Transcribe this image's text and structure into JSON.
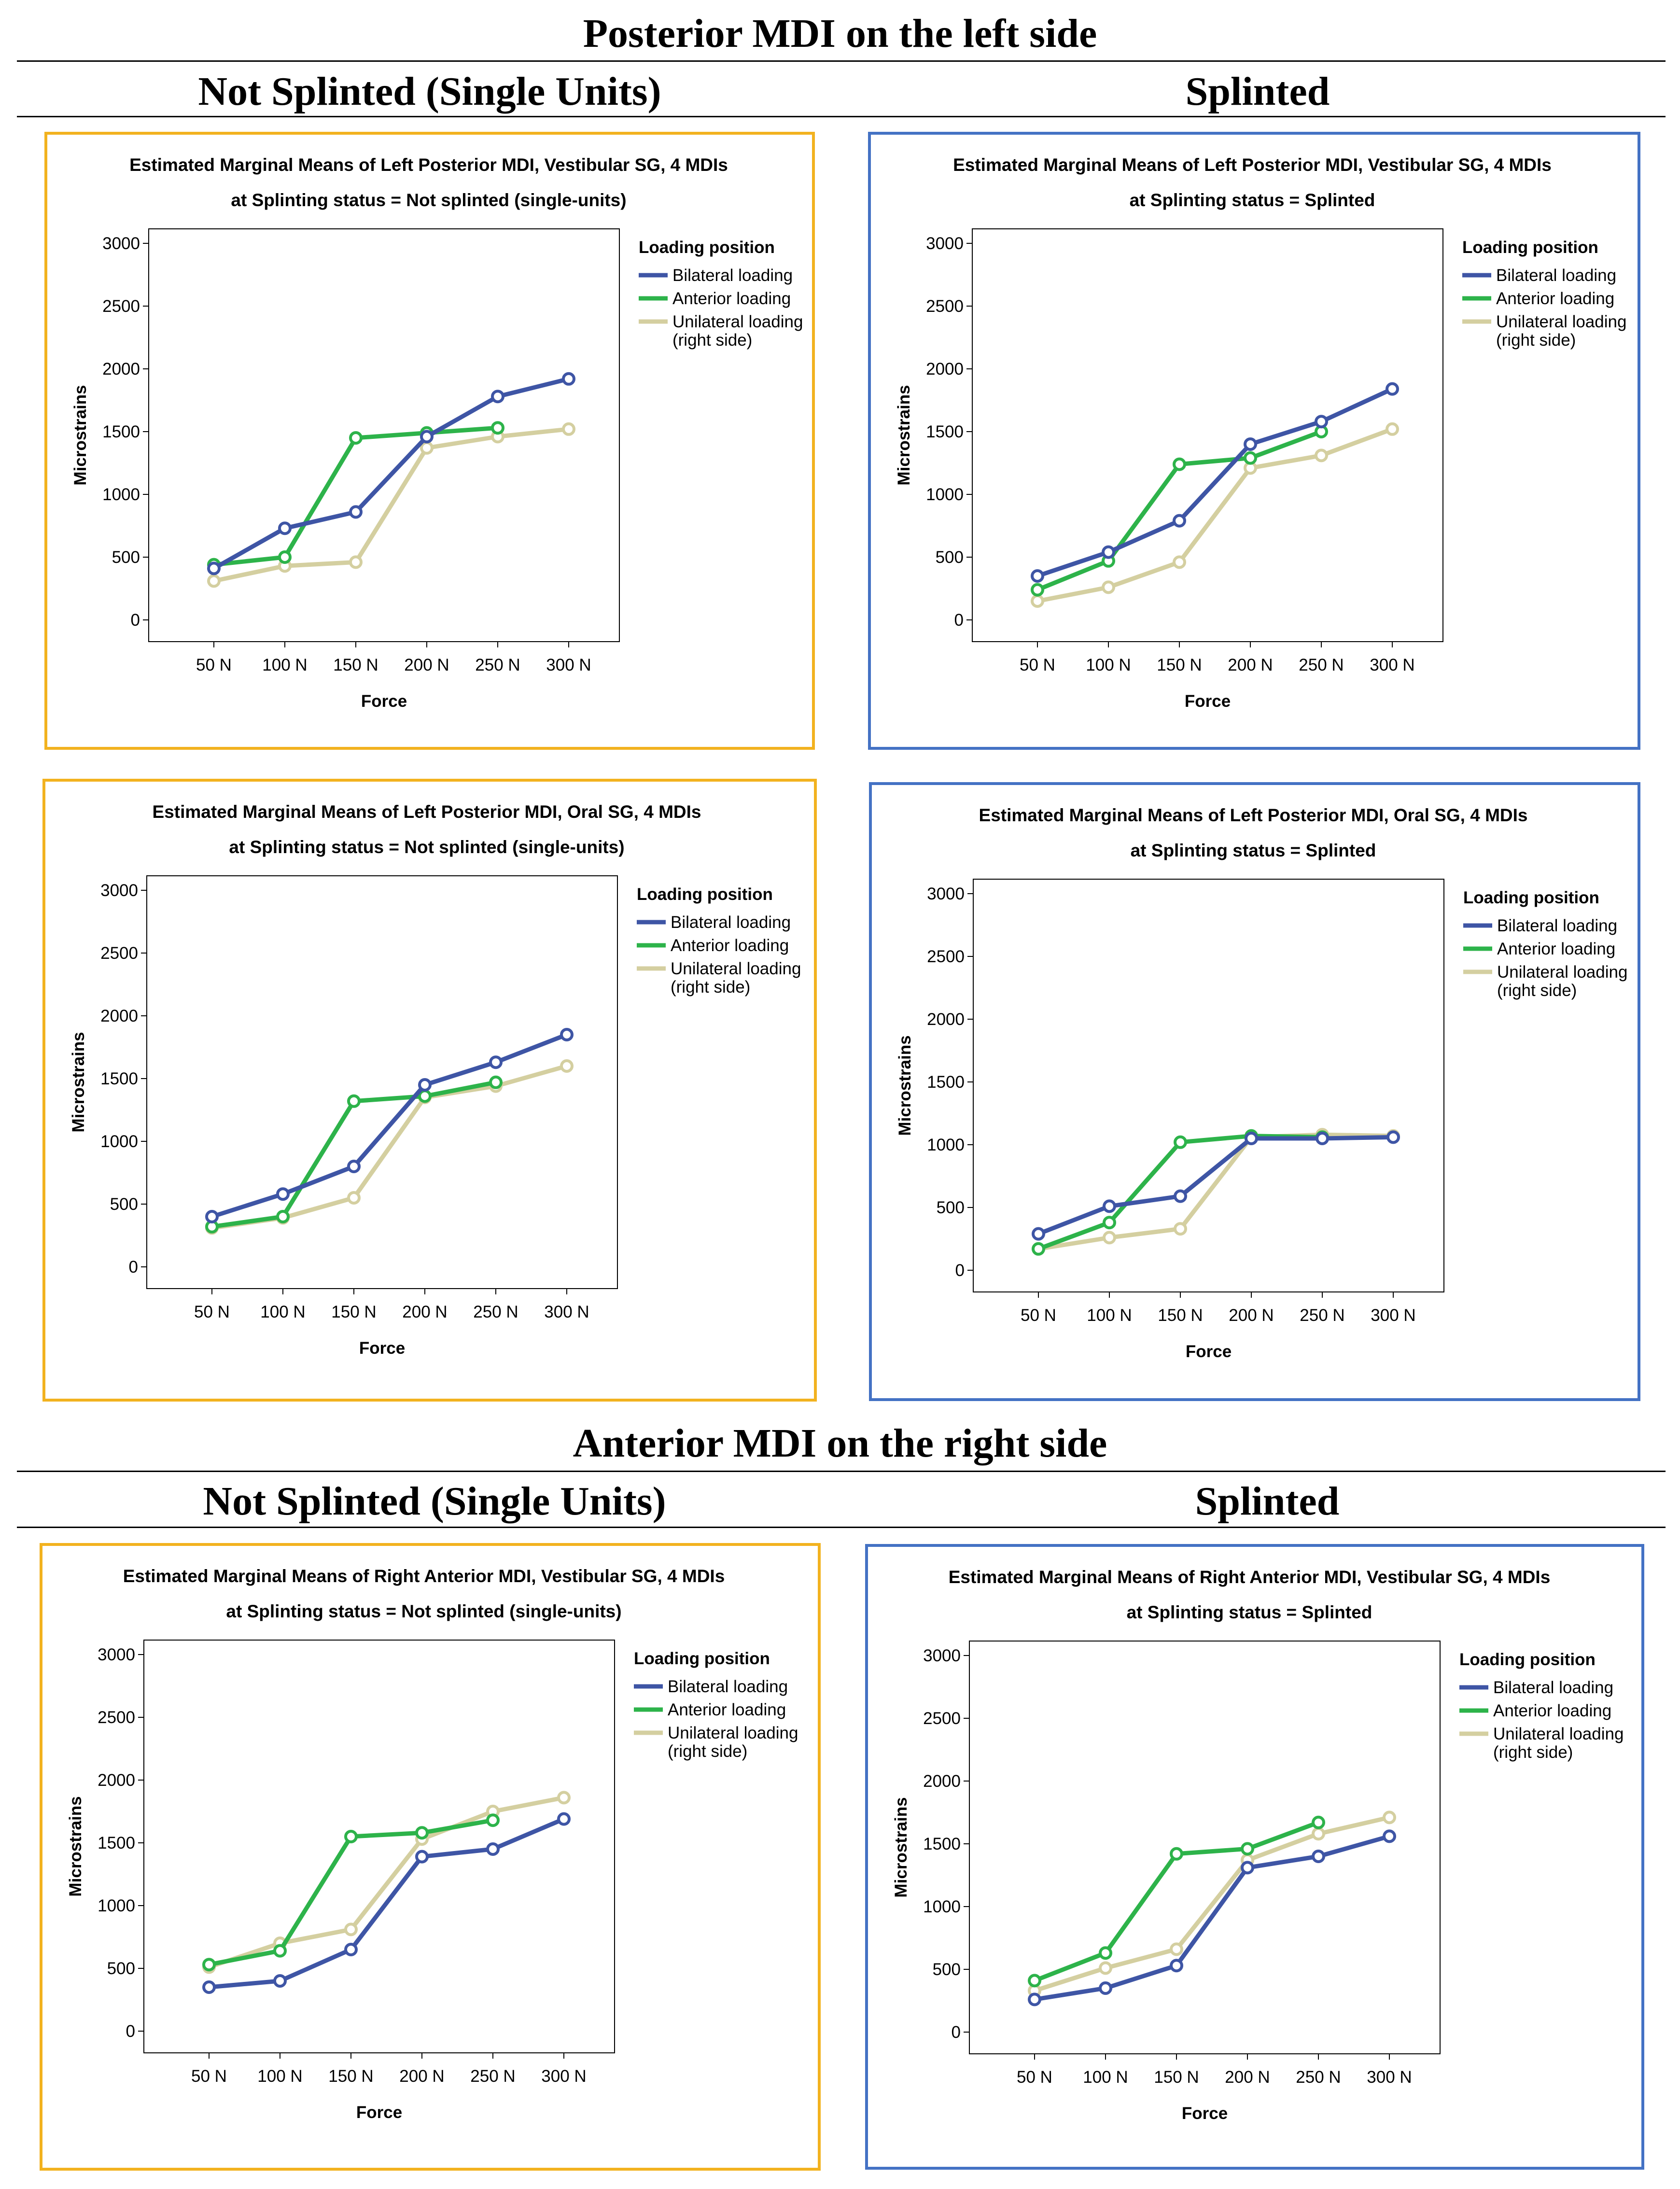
{
  "sections": [
    {
      "title": "Posterior MDI on the left side",
      "columns": [
        "Not Splinted (Single Units)",
        "Splinted"
      ]
    },
    {
      "title": "Anterior MDI on the right side",
      "columns": [
        "Not Splinted (Single Units)",
        "Splinted"
      ]
    }
  ],
  "colors": {
    "not_splinted_border": "#F2B21F",
    "splinted_border": "#4472C4",
    "bilateral": "#3E55A5",
    "anterior": "#2DB34A",
    "unilateral": "#D4CFA0"
  },
  "chart_data": [
    {
      "type": "line",
      "title": "Estimated Marginal Means of Left Posterior MDI, Vestibular SG, 4 MDIs",
      "subtitle": "at Splinting status = Not splinted (single-units)",
      "xlabel": "Force",
      "ylabel": "Microstrains",
      "categories": [
        "50 N",
        "100 N",
        "150 N",
        "200 N",
        "250 N",
        "300 N"
      ],
      "ylim": [
        0,
        3000
      ],
      "yticks": [
        0,
        500,
        1000,
        1500,
        2000,
        2500,
        3000
      ],
      "legend_title": "Loading position",
      "legend_position": "right",
      "series": [
        {
          "name": "Bilateral loading",
          "values": [
            410,
            730,
            860,
            1460,
            1780,
            1920
          ]
        },
        {
          "name": "Anterior loading",
          "values": [
            440,
            500,
            1450,
            1490,
            1530,
            null
          ]
        },
        {
          "name": "Unilateral loading (right side)",
          "name_lines": [
            "Unilateral loading",
            "(right side)"
          ],
          "values": [
            310,
            430,
            460,
            1370,
            1460,
            1520
          ]
        }
      ]
    },
    {
      "type": "line",
      "title": "Estimated Marginal Means of Left Posterior MDI, Vestibular SG, 4 MDIs",
      "subtitle": "at Splinting status = Splinted",
      "xlabel": "Force",
      "ylabel": "Microstrains",
      "categories": [
        "50 N",
        "100 N",
        "150 N",
        "200 N",
        "250 N",
        "300 N"
      ],
      "ylim": [
        0,
        3000
      ],
      "yticks": [
        0,
        500,
        1000,
        1500,
        2000,
        2500,
        3000
      ],
      "legend_title": "Loading position",
      "legend_position": "right",
      "series": [
        {
          "name": "Bilateral loading",
          "values": [
            350,
            540,
            790,
            1400,
            1580,
            1840
          ]
        },
        {
          "name": "Anterior loading",
          "values": [
            240,
            470,
            1240,
            1290,
            1500,
            null
          ]
        },
        {
          "name": "Unilateral loading (right side)",
          "name_lines": [
            "Unilateral loading",
            "(right side)"
          ],
          "values": [
            150,
            260,
            460,
            1210,
            1310,
            1520
          ]
        }
      ]
    },
    {
      "type": "line",
      "title": "Estimated Marginal Means of Left Posterior MDI, Oral SG, 4 MDIs",
      "subtitle": "at Splinting status = Not splinted (single-units)",
      "xlabel": "Force",
      "ylabel": "Microstrains",
      "categories": [
        "50 N",
        "100 N",
        "150 N",
        "200 N",
        "250 N",
        "300 N"
      ],
      "ylim": [
        0,
        3000
      ],
      "yticks": [
        0,
        500,
        1000,
        1500,
        2000,
        2500,
        3000
      ],
      "legend_title": "Loading position",
      "legend_position": "right",
      "series": [
        {
          "name": "Bilateral loading",
          "values": [
            400,
            580,
            800,
            1450,
            1630,
            1850
          ]
        },
        {
          "name": "Anterior loading",
          "values": [
            320,
            400,
            1320,
            1360,
            1470,
            null
          ]
        },
        {
          "name": "Unilateral loading (right side)",
          "name_lines": [
            "Unilateral loading",
            "(right side)"
          ],
          "values": [
            310,
            390,
            550,
            1350,
            1440,
            1600
          ]
        }
      ]
    },
    {
      "type": "line",
      "title": "Estimated Marginal Means of Left Posterior MDI, Oral SG, 4 MDIs",
      "subtitle": "at Splinting status = Splinted",
      "xlabel": "Force",
      "ylabel": "Microstrains",
      "categories": [
        "50 N",
        "100 N",
        "150 N",
        "200 N",
        "250 N",
        "300 N"
      ],
      "ylim": [
        0,
        3000
      ],
      "yticks": [
        0,
        500,
        1000,
        1500,
        2000,
        2500,
        3000
      ],
      "legend_title": "Loading position",
      "legend_position": "right",
      "series": [
        {
          "name": "Bilateral loading",
          "values": [
            290,
            510,
            590,
            1050,
            1050,
            1060
          ]
        },
        {
          "name": "Anterior loading",
          "values": [
            170,
            380,
            1020,
            1070,
            1060,
            null
          ]
        },
        {
          "name": "Unilateral loading (right side)",
          "name_lines": [
            "Unilateral loading",
            "(right side)"
          ],
          "values": [
            170,
            260,
            330,
            1060,
            1080,
            1070
          ]
        }
      ]
    },
    {
      "type": "line",
      "title": "Estimated Marginal Means of Right Anterior MDI, Vestibular SG, 4 MDIs",
      "subtitle": "at Splinting status = Not splinted (single-units)",
      "xlabel": "Force",
      "ylabel": "Microstrains",
      "categories": [
        "50 N",
        "100 N",
        "150 N",
        "200 N",
        "250 N",
        "300 N"
      ],
      "ylim": [
        0,
        3000
      ],
      "yticks": [
        0,
        500,
        1000,
        1500,
        2000,
        2500,
        3000
      ],
      "legend_title": "Loading position",
      "legend_position": "right",
      "series": [
        {
          "name": "Bilateral loading",
          "values": [
            350,
            400,
            650,
            1390,
            1450,
            1690
          ]
        },
        {
          "name": "Anterior loading",
          "values": [
            530,
            640,
            1550,
            1580,
            1680,
            null
          ]
        },
        {
          "name": "Unilateral loading (right side)",
          "name_lines": [
            "Unilateral loading",
            "(right side)"
          ],
          "values": [
            510,
            700,
            810,
            1530,
            1750,
            1860
          ]
        }
      ]
    },
    {
      "type": "line",
      "title": "Estimated Marginal Means of Right Anterior MDI, Vestibular SG, 4 MDIs",
      "subtitle": "at Splinting status = Splinted",
      "xlabel": "Force",
      "ylabel": "Microstrains",
      "categories": [
        "50 N",
        "100 N",
        "150 N",
        "200 N",
        "250 N",
        "300 N"
      ],
      "ylim": [
        0,
        3000
      ],
      "yticks": [
        0,
        500,
        1000,
        1500,
        2000,
        2500,
        3000
      ],
      "legend_title": "Loading position",
      "legend_position": "right",
      "series": [
        {
          "name": "Bilateral loading",
          "values": [
            260,
            350,
            530,
            1310,
            1400,
            1560
          ]
        },
        {
          "name": "Anterior loading",
          "values": [
            410,
            630,
            1420,
            1460,
            1670,
            null
          ]
        },
        {
          "name": "Unilateral loading (right side)",
          "name_lines": [
            "Unilateral loading",
            "(right side)"
          ],
          "values": [
            330,
            510,
            660,
            1370,
            1580,
            1710
          ]
        }
      ]
    }
  ]
}
